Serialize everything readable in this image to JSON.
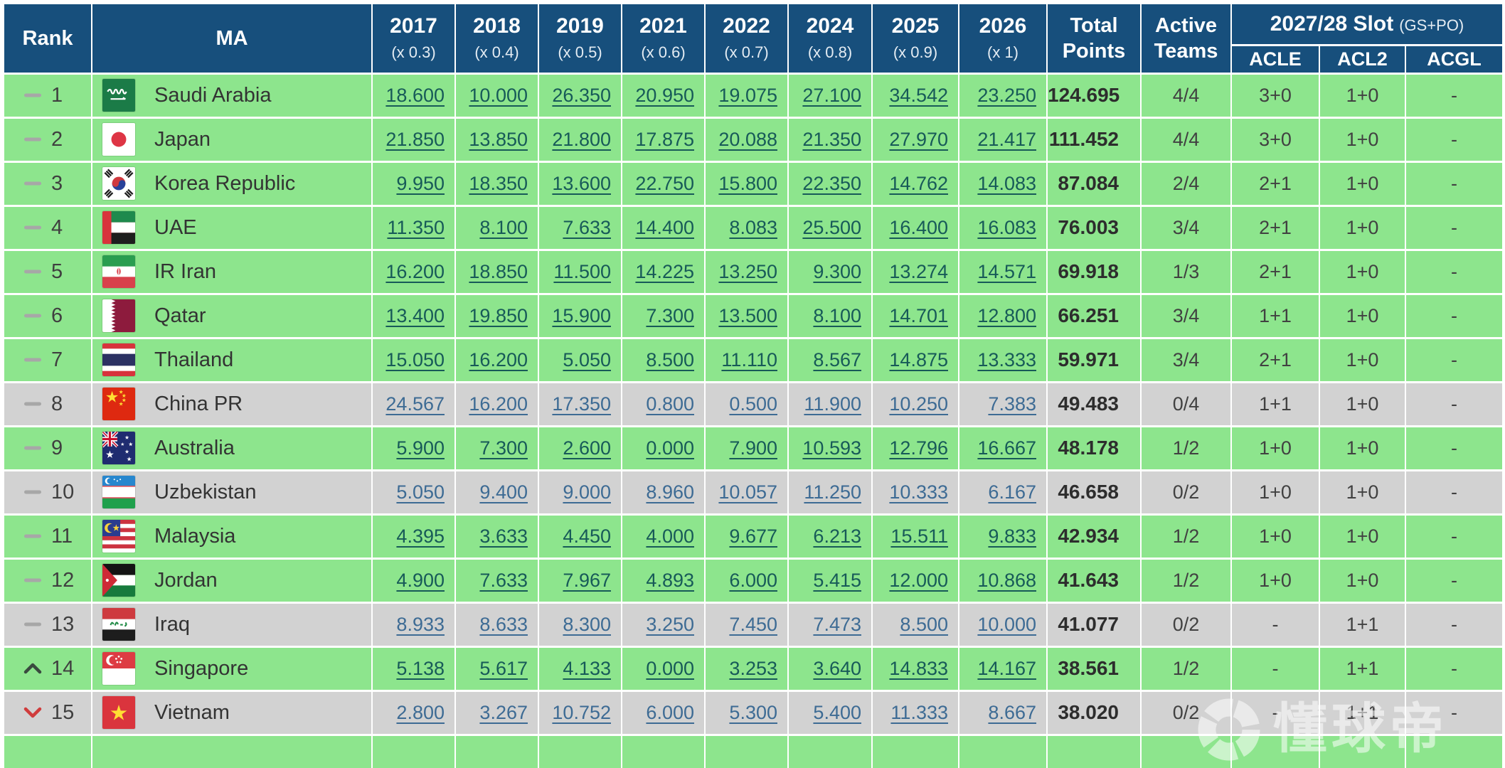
{
  "header": {
    "rank_label": "Rank",
    "ma_label": "MA",
    "year_columns": [
      {
        "year": "2017",
        "multiplier": "(x 0.3)"
      },
      {
        "year": "2018",
        "multiplier": "(x 0.4)"
      },
      {
        "year": "2019",
        "multiplier": "(x 0.5)"
      },
      {
        "year": "2021",
        "multiplier": "(x 0.6)"
      },
      {
        "year": "2022",
        "multiplier": "(x 0.7)"
      },
      {
        "year": "2024",
        "multiplier": "(x 0.8)"
      },
      {
        "year": "2025",
        "multiplier": "(x 0.9)"
      },
      {
        "year": "2026",
        "multiplier": "(x 1)"
      }
    ],
    "total_points_label": "Total Points",
    "active_teams_label": "Active Teams",
    "slot_group": {
      "title": "2027/28 Slot",
      "note": "(GS+PO)",
      "columns": [
        "ACLE",
        "ACL2",
        "ACGL"
      ]
    }
  },
  "rows": [
    {
      "rank": "1",
      "change": "same",
      "country": "Saudi Arabia",
      "flag": "saudi-arabia",
      "row_style": "green",
      "values": [
        "18.600",
        "10.000",
        "26.350",
        "20.950",
        "19.075",
        "27.100",
        "34.542",
        "23.250"
      ],
      "total": "124.695",
      "active": "4/4",
      "acle": "3+0",
      "acl2": "1+0",
      "acgl": "-"
    },
    {
      "rank": "2",
      "change": "same",
      "country": "Japan",
      "flag": "japan",
      "row_style": "green",
      "values": [
        "21.850",
        "13.850",
        "21.800",
        "17.875",
        "20.088",
        "21.350",
        "27.970",
        "21.417"
      ],
      "total": "111.452",
      "active": "4/4",
      "acle": "3+0",
      "acl2": "1+0",
      "acgl": "-"
    },
    {
      "rank": "3",
      "change": "same",
      "country": "Korea Republic",
      "flag": "korea-republic",
      "row_style": "green",
      "values": [
        "9.950",
        "18.350",
        "13.600",
        "22.750",
        "15.800",
        "22.350",
        "14.762",
        "14.083"
      ],
      "total": "87.084",
      "active": "2/4",
      "acle": "2+1",
      "acl2": "1+0",
      "acgl": "-"
    },
    {
      "rank": "4",
      "change": "same",
      "country": "UAE",
      "flag": "uae",
      "row_style": "green",
      "values": [
        "11.350",
        "8.100",
        "7.633",
        "14.400",
        "8.083",
        "25.500",
        "16.400",
        "16.083"
      ],
      "total": "76.003",
      "active": "3/4",
      "acle": "2+1",
      "acl2": "1+0",
      "acgl": "-"
    },
    {
      "rank": "5",
      "change": "same",
      "country": "IR Iran",
      "flag": "iran",
      "row_style": "green",
      "values": [
        "16.200",
        "18.850",
        "11.500",
        "14.225",
        "13.250",
        "9.300",
        "13.274",
        "14.571"
      ],
      "total": "69.918",
      "active": "1/3",
      "acle": "2+1",
      "acl2": "1+0",
      "acgl": "-"
    },
    {
      "rank": "6",
      "change": "same",
      "country": "Qatar",
      "flag": "qatar",
      "row_style": "green",
      "values": [
        "13.400",
        "19.850",
        "15.900",
        "7.300",
        "13.500",
        "8.100",
        "14.701",
        "12.800"
      ],
      "total": "66.251",
      "active": "3/4",
      "acle": "1+1",
      "acl2": "1+0",
      "acgl": "-"
    },
    {
      "rank": "7",
      "change": "same",
      "country": "Thailand",
      "flag": "thailand",
      "row_style": "green",
      "values": [
        "15.050",
        "16.200",
        "5.050",
        "8.500",
        "11.110",
        "8.567",
        "14.875",
        "13.333"
      ],
      "total": "59.971",
      "active": "3/4",
      "acle": "2+1",
      "acl2": "1+0",
      "acgl": "-"
    },
    {
      "rank": "8",
      "change": "same",
      "country": "China PR",
      "flag": "china",
      "row_style": "gray",
      "values": [
        "24.567",
        "16.200",
        "17.350",
        "0.800",
        "0.500",
        "11.900",
        "10.250",
        "7.383"
      ],
      "total": "49.483",
      "active": "0/4",
      "acle": "1+1",
      "acl2": "1+0",
      "acgl": "-"
    },
    {
      "rank": "9",
      "change": "same",
      "country": "Australia",
      "flag": "australia",
      "row_style": "green",
      "values": [
        "5.900",
        "7.300",
        "2.600",
        "0.000",
        "7.900",
        "10.593",
        "12.796",
        "16.667"
      ],
      "total": "48.178",
      "active": "1/2",
      "acle": "1+0",
      "acl2": "1+0",
      "acgl": "-"
    },
    {
      "rank": "10",
      "change": "same",
      "country": "Uzbekistan",
      "flag": "uzbekistan",
      "row_style": "gray",
      "values": [
        "5.050",
        "9.400",
        "9.000",
        "8.960",
        "10.057",
        "11.250",
        "10.333",
        "6.167"
      ],
      "total": "46.658",
      "active": "0/2",
      "acle": "1+0",
      "acl2": "1+0",
      "acgl": "-"
    },
    {
      "rank": "11",
      "change": "same",
      "country": "Malaysia",
      "flag": "malaysia",
      "row_style": "green",
      "values": [
        "4.395",
        "3.633",
        "4.450",
        "4.000",
        "9.677",
        "6.213",
        "15.511",
        "9.833"
      ],
      "total": "42.934",
      "active": "1/2",
      "acle": "1+0",
      "acl2": "1+0",
      "acgl": "-"
    },
    {
      "rank": "12",
      "change": "same",
      "country": "Jordan",
      "flag": "jordan",
      "row_style": "green",
      "values": [
        "4.900",
        "7.633",
        "7.967",
        "4.893",
        "6.000",
        "5.415",
        "12.000",
        "10.868"
      ],
      "total": "41.643",
      "active": "1/2",
      "acle": "1+0",
      "acl2": "1+0",
      "acgl": "-"
    },
    {
      "rank": "13",
      "change": "same",
      "country": "Iraq",
      "flag": "iraq",
      "row_style": "gray",
      "values": [
        "8.933",
        "8.633",
        "8.300",
        "3.250",
        "7.450",
        "7.473",
        "8.500",
        "10.000"
      ],
      "total": "41.077",
      "active": "0/2",
      "acle": "-",
      "acl2": "1+1",
      "acgl": "-"
    },
    {
      "rank": "14",
      "change": "up",
      "country": "Singapore",
      "flag": "singapore",
      "row_style": "green",
      "values": [
        "5.138",
        "5.617",
        "4.133",
        "0.000",
        "3.253",
        "3.640",
        "14.833",
        "14.167"
      ],
      "total": "38.561",
      "active": "1/2",
      "acle": "-",
      "acl2": "1+1",
      "acgl": "-"
    },
    {
      "rank": "15",
      "change": "down",
      "country": "Vietnam",
      "flag": "vietnam",
      "row_style": "gray",
      "values": [
        "2.800",
        "3.267",
        "10.752",
        "6.000",
        "5.300",
        "5.400",
        "11.333",
        "8.667"
      ],
      "total": "38.020",
      "active": "0/2",
      "acle": "-",
      "acl2": "1+1",
      "acgl": "-"
    }
  ],
  "watermark": {
    "text": "懂球帝",
    "icon": "dongqiudi-ball-icon"
  },
  "colors": {
    "header_bg": "#174F7C",
    "row_green": "#8DE58D",
    "row_gray": "#D2D2D2",
    "link_green": "#175A58",
    "link_gray": "#3D6B94",
    "arrow_up": "#3A4A3F",
    "arrow_down": "#D03C3C",
    "dash_gray": "#A7A7A7"
  }
}
